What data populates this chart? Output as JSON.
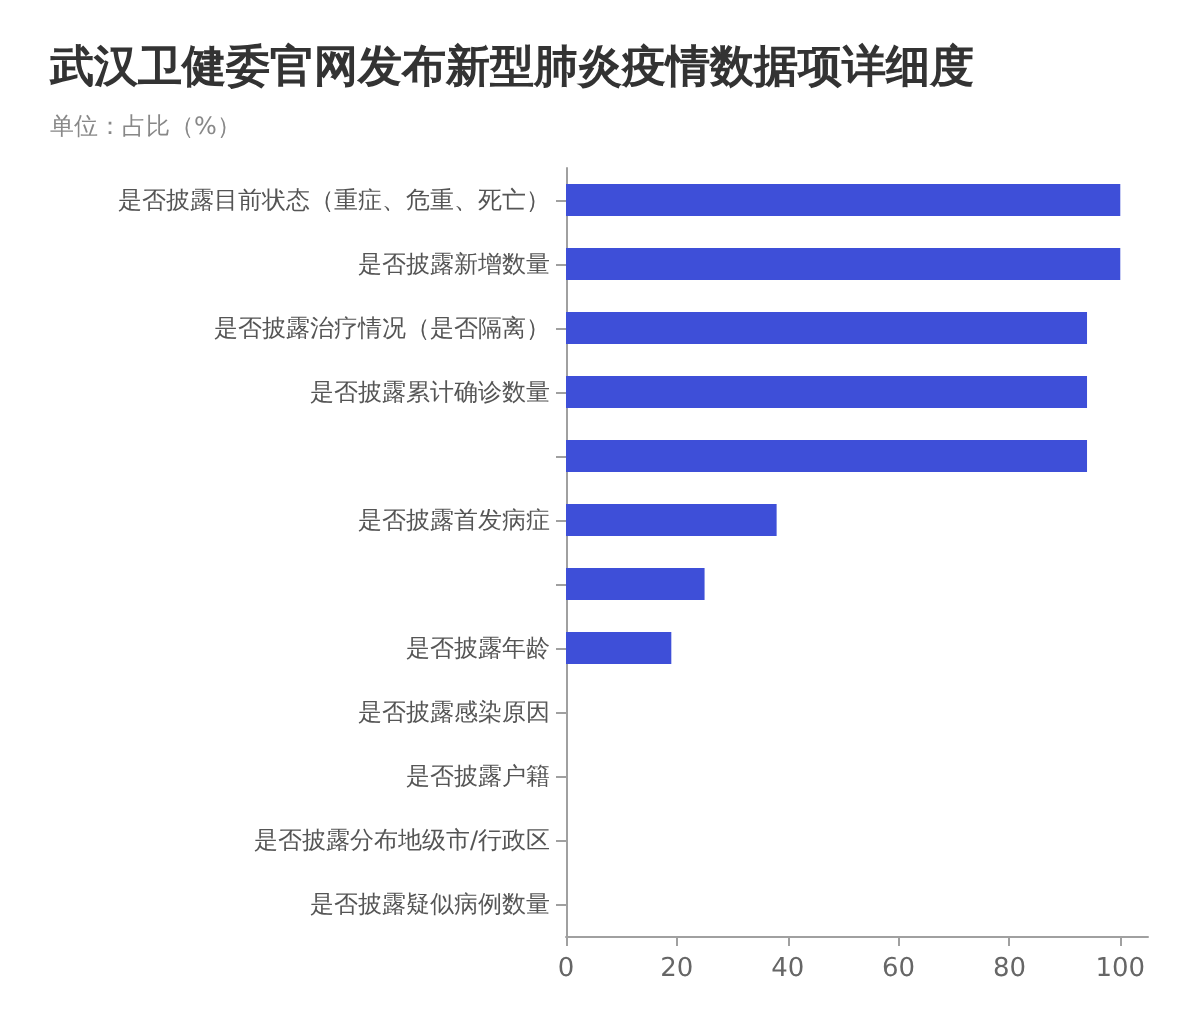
{
  "chart_data": {
    "type": "bar",
    "orientation": "horizontal",
    "title": "武汉卫健委官网发布新型肺炎疫情数据项详细度",
    "subtitle": "单位：占比（%）",
    "categories": [
      "是否披露目前状态（重症、危重、死亡）",
      "是否披露新增数量",
      "是否披露治疗情况（是否隔离）",
      "是否披露累计确诊数量",
      null,
      "是否披露首发病症",
      null,
      "是否披露年龄",
      "是否披露感染原因",
      "是否披露户籍",
      "是否披露分布地级市/行政区",
      "是否披露疑似病例数量"
    ],
    "values": [
      100,
      100,
      94,
      94,
      94,
      38,
      25,
      19,
      0,
      0,
      0,
      0
    ],
    "color": "#3e4fd8",
    "xlim": [
      0,
      105
    ],
    "xticks": [
      0,
      20,
      40,
      60,
      80,
      100
    ],
    "grid": false
  }
}
